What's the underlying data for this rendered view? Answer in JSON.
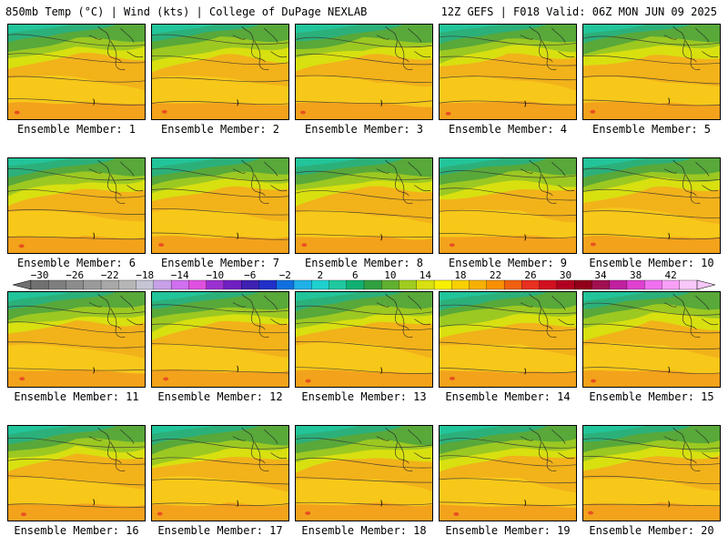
{
  "header": {
    "left": "850mb Temp (°C) | Wind (kts) | College of DuPage NEXLAB",
    "right": "12Z GEFS | F018 Valid: 06Z MON JUN 09 2025"
  },
  "panels": [
    {
      "label": "Ensemble Member: 1"
    },
    {
      "label": "Ensemble Member: 2"
    },
    {
      "label": "Ensemble Member: 3"
    },
    {
      "label": "Ensemble Member: 4"
    },
    {
      "label": "Ensemble Member: 5"
    },
    {
      "label": "Ensemble Member: 6"
    },
    {
      "label": "Ensemble Member: 7"
    },
    {
      "label": "Ensemble Member: 8"
    },
    {
      "label": "Ensemble Member: 9"
    },
    {
      "label": "Ensemble Member: 10"
    },
    {
      "label": "Ensemble Member: 11"
    },
    {
      "label": "Ensemble Member: 12"
    },
    {
      "label": "Ensemble Member: 13"
    },
    {
      "label": "Ensemble Member: 14"
    },
    {
      "label": "Ensemble Member: 15"
    },
    {
      "label": "Ensemble Member: 16"
    },
    {
      "label": "Ensemble Member: 17"
    },
    {
      "label": "Ensemble Member: 18"
    },
    {
      "label": "Ensemble Member: 19"
    },
    {
      "label": "Ensemble Member: 20"
    }
  ],
  "colorbar": {
    "labels": [
      "−30",
      "−26",
      "−22",
      "−18",
      "−14",
      "−10",
      "−6",
      "−2",
      "2",
      "6",
      "10",
      "14",
      "18",
      "22",
      "26",
      "30",
      "34",
      "38",
      "42"
    ],
    "colors": [
      "#707070",
      "#7e7e7e",
      "#8c8c8c",
      "#9a9a9a",
      "#a8a8a8",
      "#b6b6b6",
      "#c4c4d4",
      "#c8a0e8",
      "#d070f0",
      "#e050e0",
      "#9a30d0",
      "#7020c0",
      "#4020b0",
      "#2030c8",
      "#1070e0",
      "#20b0e8",
      "#20d0d0",
      "#20c8a0",
      "#10b070",
      "#30a040",
      "#60b030",
      "#a0cc20",
      "#d8e010",
      "#f8f000",
      "#f8d000",
      "#f8b000",
      "#f89000",
      "#f06010",
      "#e83020",
      "#d01020",
      "#b00020",
      "#900018",
      "#a01050",
      "#c020a0",
      "#e040d0",
      "#f070f0",
      "#f8a0f8",
      "#f8c8f8"
    ]
  }
}
